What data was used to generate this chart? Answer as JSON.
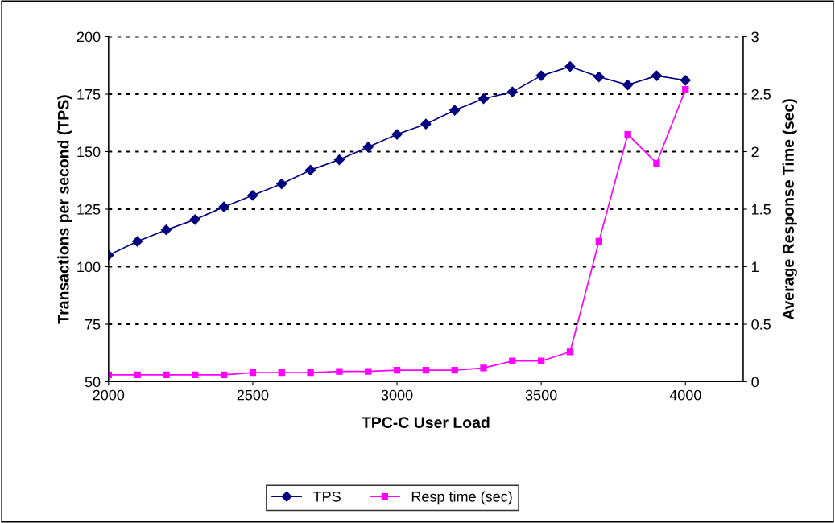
{
  "chart_data": {
    "type": "line",
    "xlabel": "TPC-C User Load",
    "ylabel": "Transactions per second (TPS)",
    "y2label": "Average Response Time (sec)",
    "x": [
      2000,
      2100,
      2200,
      2300,
      2400,
      2500,
      2600,
      2700,
      2800,
      2900,
      3000,
      3100,
      3200,
      3300,
      3400,
      3500,
      3600,
      3700,
      3800,
      3900,
      4000
    ],
    "series": [
      {
        "name": "TPS",
        "color": "#000080",
        "marker": "diamond",
        "values": [
          105,
          111,
          116,
          120.5,
          126,
          131,
          136,
          142,
          146.5,
          152,
          157.5,
          162,
          168,
          173,
          176,
          183,
          187,
          182.5,
          179,
          183,
          181
        ]
      },
      {
        "name": "Resp time (sec)",
        "color": "#ff00ff",
        "marker": "square",
        "axis": "y2",
        "values": [
          0.06,
          0.06,
          0.06,
          0.06,
          0.06,
          0.08,
          0.08,
          0.08,
          0.09,
          0.09,
          0.1,
          0.1,
          0.1,
          0.12,
          0.18,
          0.18,
          0.26,
          1.22,
          2.15,
          1.9,
          2.54
        ]
      }
    ],
    "xlim": [
      2000,
      4200
    ],
    "xticks": [
      2000,
      2500,
      3000,
      3500,
      4000
    ],
    "ylim": [
      50,
      200
    ],
    "yticks": [
      50,
      75,
      100,
      125,
      150,
      175,
      200
    ],
    "y2lim": [
      0,
      3
    ],
    "y2ticks": [
      0,
      0.5,
      1,
      1.5,
      2,
      2.5,
      3
    ],
    "grid": "y",
    "line_style": "solid",
    "legend": "bottom"
  }
}
